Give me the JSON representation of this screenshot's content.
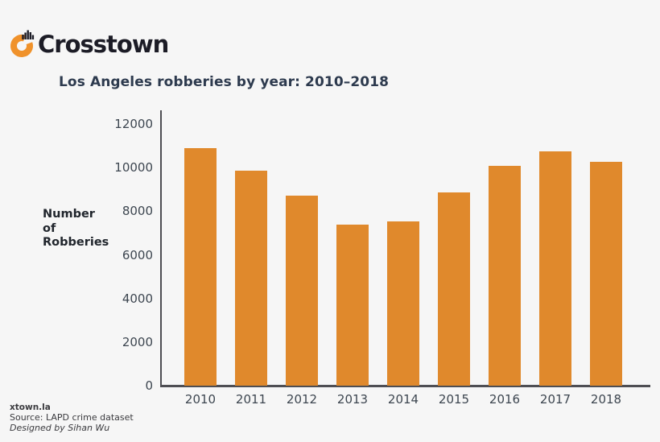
{
  "brand": {
    "wordmark": "Crosstown",
    "logo_orange": "#F0922B",
    "logo_dark": "#1d1d27"
  },
  "chart_data": {
    "type": "bar",
    "title": "Los Angeles robberies by year: 2010–2018",
    "ylabel": "Number\nof\nRobberies",
    "xlabel": "",
    "categories": [
      "2010",
      "2011",
      "2012",
      "2013",
      "2014",
      "2015",
      "2016",
      "2017",
      "2018"
    ],
    "values": [
      10900,
      9850,
      8700,
      7400,
      7550,
      8850,
      10100,
      10750,
      10250
    ],
    "yticks": [
      12000,
      10000,
      8000,
      6000,
      4000,
      2000,
      0
    ],
    "ylim": [
      0,
      12000
    ],
    "bar_color": "#E0892C",
    "grid": false,
    "legend": null
  },
  "footer": {
    "site": "xtown.la",
    "source": "Source: LAPD crime dataset",
    "credit": "Designed by Sihan Wu"
  }
}
